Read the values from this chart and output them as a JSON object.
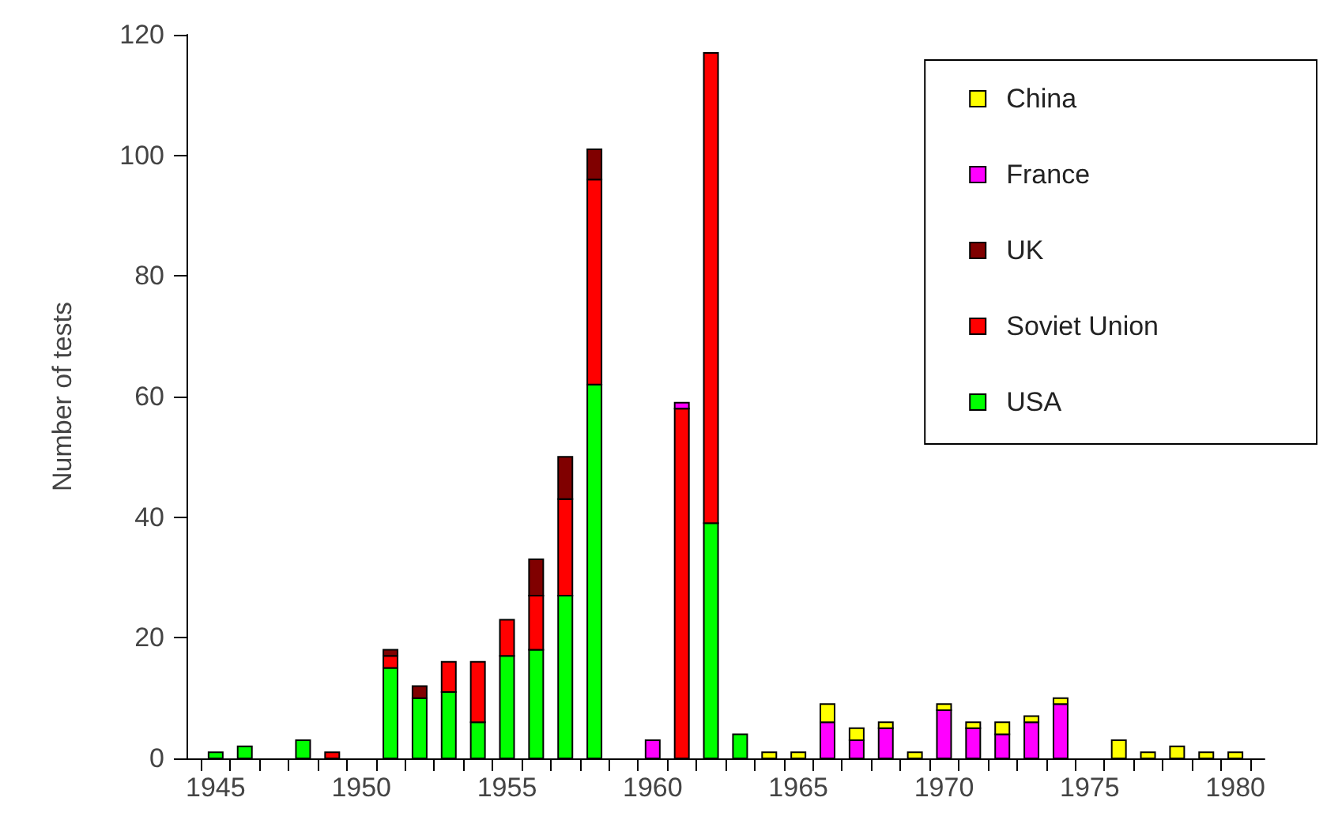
{
  "chart_data": {
    "type": "bar",
    "stacked": true,
    "ylabel": "Number of tests",
    "x": [
      1945,
      1946,
      1948,
      1949,
      1951,
      1952,
      1953,
      1954,
      1955,
      1956,
      1957,
      1958,
      1960,
      1961,
      1962,
      1963,
      1964,
      1965,
      1966,
      1967,
      1968,
      1969,
      1970,
      1971,
      1972,
      1973,
      1974,
      1976,
      1977,
      1978,
      1979,
      1980
    ],
    "series": [
      {
        "name": "USA",
        "color": "#00ff00",
        "values": [
          1,
          2,
          3,
          null,
          15,
          10,
          11,
          6,
          17,
          18,
          27,
          62,
          null,
          null,
          39,
          4,
          null,
          null,
          null,
          null,
          null,
          null,
          null,
          null,
          null,
          null,
          null,
          null,
          null,
          null,
          null,
          null
        ]
      },
      {
        "name": "Soviet Union",
        "color": "#ff0000",
        "values": [
          null,
          null,
          null,
          1,
          2,
          null,
          5,
          10,
          6,
          9,
          16,
          34,
          null,
          58,
          78,
          null,
          null,
          null,
          null,
          null,
          null,
          null,
          null,
          null,
          null,
          null,
          null,
          null,
          null,
          null,
          null,
          null
        ]
      },
      {
        "name": "UK",
        "color": "#800000",
        "values": [
          null,
          null,
          null,
          null,
          1,
          2,
          null,
          null,
          null,
          6,
          7,
          5,
          null,
          null,
          null,
          null,
          null,
          null,
          null,
          null,
          null,
          null,
          null,
          null,
          null,
          null,
          null,
          null,
          null,
          null,
          null,
          null
        ]
      },
      {
        "name": "France",
        "color": "#ff00ff",
        "values": [
          null,
          null,
          null,
          null,
          null,
          null,
          null,
          null,
          null,
          null,
          null,
          null,
          3,
          1,
          null,
          null,
          null,
          null,
          6,
          3,
          5,
          null,
          8,
          5,
          4,
          6,
          9,
          null,
          null,
          null,
          null,
          null
        ]
      },
      {
        "name": "China",
        "color": "#ffff00",
        "values": [
          null,
          null,
          null,
          null,
          null,
          null,
          null,
          null,
          null,
          null,
          null,
          null,
          null,
          null,
          null,
          null,
          1,
          1,
          3,
          2,
          1,
          1,
          1,
          1,
          2,
          1,
          1,
          3,
          1,
          2,
          1,
          1
        ]
      }
    ],
    "xlim": [
      1944,
      1981
    ],
    "xticks": [
      {
        "value": 1944.5,
        "label": null
      },
      {
        "value": 1945,
        "label": "1945"
      },
      {
        "value": 1945.5,
        "label": null
      },
      {
        "value": 1946.5,
        "label": null
      },
      {
        "value": 1947.5,
        "label": null
      },
      {
        "value": 1948.5,
        "label": null
      },
      {
        "value": 1949.5,
        "label": null
      },
      {
        "value": 1950,
        "label": "1950"
      },
      {
        "value": 1950.5,
        "label": null
      },
      {
        "value": 1951.5,
        "label": null
      },
      {
        "value": 1952.5,
        "label": null
      },
      {
        "value": 1953.5,
        "label": null
      },
      {
        "value": 1954.5,
        "label": null
      },
      {
        "value": 1955,
        "label": "1955"
      },
      {
        "value": 1955.5,
        "label": null
      },
      {
        "value": 1956.5,
        "label": null
      },
      {
        "value": 1957.5,
        "label": null
      },
      {
        "value": 1958.5,
        "label": null
      },
      {
        "value": 1959.5,
        "label": null
      },
      {
        "value": 1960,
        "label": "1960"
      },
      {
        "value": 1960.5,
        "label": null
      },
      {
        "value": 1961.5,
        "label": null
      },
      {
        "value": 1962.5,
        "label": null
      },
      {
        "value": 1963.5,
        "label": null
      },
      {
        "value": 1964.5,
        "label": null
      },
      {
        "value": 1965,
        "label": "1965"
      },
      {
        "value": 1965.5,
        "label": null
      },
      {
        "value": 1966.5,
        "label": null
      },
      {
        "value": 1967.5,
        "label": null
      },
      {
        "value": 1968.5,
        "label": null
      },
      {
        "value": 1969.5,
        "label": null
      },
      {
        "value": 1970,
        "label": "1970"
      },
      {
        "value": 1970.5,
        "label": null
      },
      {
        "value": 1971.5,
        "label": null
      },
      {
        "value": 1972.5,
        "label": null
      },
      {
        "value": 1973.5,
        "label": null
      },
      {
        "value": 1974.5,
        "label": null
      },
      {
        "value": 1975,
        "label": "1975"
      },
      {
        "value": 1975.5,
        "label": null
      },
      {
        "value": 1976.5,
        "label": null
      },
      {
        "value": 1977.5,
        "label": null
      },
      {
        "value": 1978.5,
        "label": null
      },
      {
        "value": 1979.5,
        "label": null
      },
      {
        "value": 1980,
        "label": "1980"
      },
      {
        "value": 1980.5,
        "label": null
      }
    ],
    "ylim": [
      0,
      120
    ],
    "yticks": [
      0,
      20,
      40,
      60,
      80,
      100,
      120
    ],
    "grid": false,
    "legend": "top right"
  }
}
